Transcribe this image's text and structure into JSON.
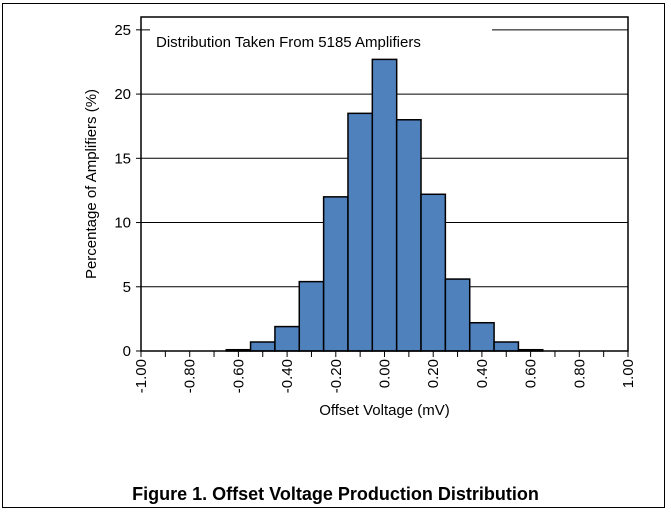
{
  "chart_data": {
    "type": "bar",
    "title": "",
    "annotation": "Distribution Taken From 5185 Amplifiers",
    "xlabel": "Offset Voltage (mV)",
    "ylabel": "Percentage of Amplifiers (%)",
    "xlim": [
      -1.0,
      1.0
    ],
    "ylim": [
      0,
      26
    ],
    "yticks": [
      0,
      5,
      10,
      15,
      20,
      25
    ],
    "xtick_values": [
      -1.0,
      -0.8,
      -0.6,
      -0.4,
      -0.2,
      0.0,
      0.2,
      0.4,
      0.6,
      0.8,
      1.0
    ],
    "xtick_labels": [
      "-1.00",
      "-0.80",
      "-0.60",
      "-0.40",
      "-0.20",
      "0.00",
      "0.20",
      "0.40",
      "0.60",
      "0.80",
      "1.00"
    ],
    "bin_width": 0.1,
    "bin_centers": [
      -0.6,
      -0.5,
      -0.4,
      -0.3,
      -0.2,
      -0.1,
      0.0,
      0.1,
      0.2,
      0.3,
      0.4,
      0.5,
      0.6
    ],
    "values": [
      0.1,
      0.7,
      1.9,
      5.4,
      12.0,
      18.5,
      22.7,
      18.0,
      12.2,
      5.6,
      2.2,
      0.7,
      0.1
    ],
    "grid": "horizontal",
    "bar_color": "#4f81bd"
  },
  "caption": "Figure 1. Offset Voltage Production Distribution"
}
